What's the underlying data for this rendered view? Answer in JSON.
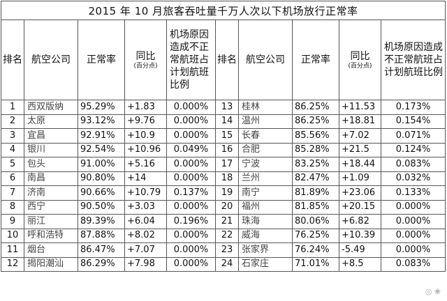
{
  "title": "2015 年 10 月旅客吞吐量千万人次以下机场放行正常率",
  "headers": {
    "rank": "排名",
    "airline": "航空公司",
    "rate": "正常率",
    "yoy": "同比",
    "yoy_unit": "(百分点)",
    "ratio": "机场原因造成不正常航班占计划航班比例"
  },
  "left_rows": [
    {
      "rank": "1",
      "name": "西双版纳",
      "rate": "95.29%",
      "yoy": "+1.83",
      "ratio": "0.000%"
    },
    {
      "rank": "2",
      "name": "太原",
      "rate": "93.12%",
      "yoy": "+9.76",
      "ratio": "0.000%"
    },
    {
      "rank": "3",
      "name": "宜昌",
      "rate": "92.91%",
      "yoy": "+10.9",
      "ratio": "0.000%"
    },
    {
      "rank": "4",
      "name": "银川",
      "rate": "92.54%",
      "yoy": "+10.96",
      "ratio": "0.049%"
    },
    {
      "rank": "5",
      "name": "包头",
      "rate": "91.00%",
      "yoy": "+5.16",
      "ratio": "0.000%"
    },
    {
      "rank": "6",
      "name": "南昌",
      "rate": "90.80%",
      "yoy": "+14",
      "ratio": "0.000%"
    },
    {
      "rank": "7",
      "name": "济南",
      "rate": "90.66%",
      "yoy": "+10.79",
      "ratio": "0.137%"
    },
    {
      "rank": "8",
      "name": "西宁",
      "rate": "90.50%",
      "yoy": "+3.03",
      "ratio": "0.000%"
    },
    {
      "rank": "9",
      "name": "丽江",
      "rate": "89.39%",
      "yoy": "+6.04",
      "ratio": "0.196%"
    },
    {
      "rank": "10",
      "name": "呼和浩特",
      "rate": "87.88%",
      "yoy": "+8.02",
      "ratio": "0.000%"
    },
    {
      "rank": "11",
      "name": "烟台",
      "rate": "86.47%",
      "yoy": "+7.07",
      "ratio": "0.000%"
    },
    {
      "rank": "12",
      "name": "揭阳潮汕",
      "rate": "86.29%",
      "yoy": "+7.98",
      "ratio": "0.000%"
    }
  ],
  "right_rows": [
    {
      "rank": "13",
      "name": "桂林",
      "rate": "86.25%",
      "yoy": "+11.53",
      "ratio": "0.173%"
    },
    {
      "rank": "14",
      "name": "温州",
      "rate": "86.25%",
      "yoy": "+18.81",
      "ratio": "0.154%"
    },
    {
      "rank": "15",
      "name": "长春",
      "rate": "85.56%",
      "yoy": "+7.02",
      "ratio": "0.071%"
    },
    {
      "rank": "16",
      "name": "合肥",
      "rate": "85.28%",
      "yoy": "+21.5",
      "ratio": "0.124%"
    },
    {
      "rank": "17",
      "name": "宁波",
      "rate": "83.25%",
      "yoy": "+18.44",
      "ratio": "0.083%"
    },
    {
      "rank": "18",
      "name": "兰州",
      "rate": "82.47%",
      "yoy": "+1.09",
      "ratio": "0.032%"
    },
    {
      "rank": "19",
      "name": "南宁",
      "rate": "81.89%",
      "yoy": "+23.06",
      "ratio": "0.133%"
    },
    {
      "rank": "20",
      "name": "福州",
      "rate": "81.85%",
      "yoy": "+20.15",
      "ratio": "0.000%"
    },
    {
      "rank": "21",
      "name": "珠海",
      "rate": "80.06%",
      "yoy": "+6.82",
      "ratio": "0.000%"
    },
    {
      "rank": "22",
      "name": "威海",
      "rate": "76.25%",
      "yoy": "+10.39",
      "ratio": "0.000%"
    },
    {
      "rank": "23",
      "name": "张家界",
      "rate": "76.24%",
      "yoy": "-5.49",
      "ratio": "0.000%"
    },
    {
      "rank": "24",
      "name": "石家庄",
      "rate": "71.01%",
      "yoy": "+8.5",
      "ratio": "0.083%"
    }
  ]
}
